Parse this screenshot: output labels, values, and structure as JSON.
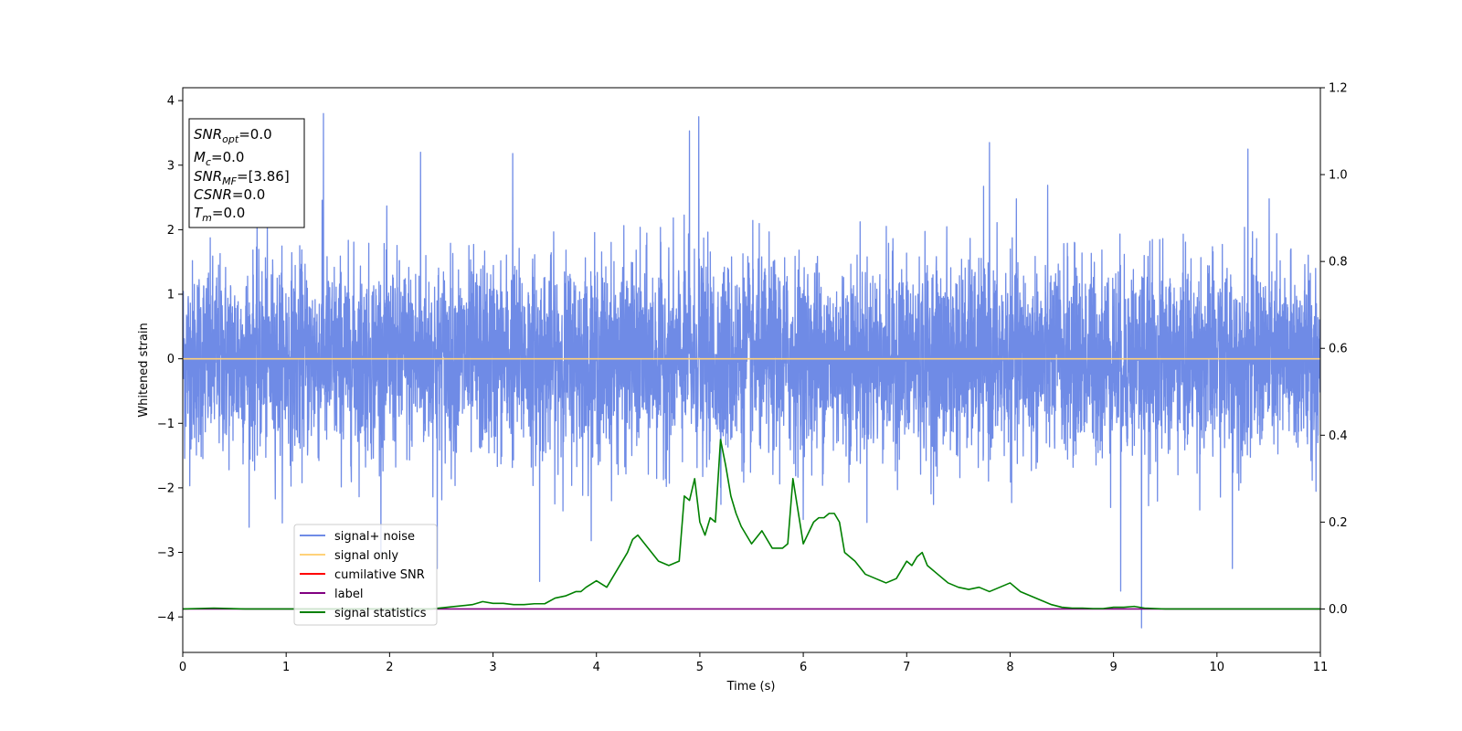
{
  "chart_data": {
    "type": "line",
    "xlabel": "Time (s)",
    "ylabel": "Whitened strain",
    "xlim": [
      0,
      11
    ],
    "ylim": [
      -4.55,
      4.2
    ],
    "y2lim": [
      -0.1,
      1.2
    ],
    "x_ticks": [
      "0",
      "1",
      "2",
      "3",
      "4",
      "5",
      "6",
      "7",
      "8",
      "9",
      "10",
      "11"
    ],
    "y_ticks": [
      "−4",
      "−3",
      "−2",
      "−1",
      "0",
      "1",
      "2",
      "3",
      "4"
    ],
    "y2_ticks": [
      "0.0",
      "0.2",
      "0.4",
      "0.6",
      "0.8",
      "1.0",
      "1.2"
    ],
    "grid": false,
    "legend_position": "lower-left",
    "legend": [
      {
        "label": "signal+ noise",
        "color": "#6f8be6"
      },
      {
        "label": "signal only",
        "color": "#ffd27a"
      },
      {
        "label": "cumilative SNR",
        "color": "#ff0000"
      },
      {
        "label": "label",
        "color": "#800080"
      },
      {
        "label": "signal statistics",
        "color": "#008000"
      }
    ],
    "annotation_box": {
      "snr_opt": {
        "name": "SNR",
        "sub": "opt",
        "value": "=0.0"
      },
      "mc": {
        "name": "M",
        "sub": "c",
        "value": "=0.0"
      },
      "snr_mf": {
        "name": "SNR",
        "sub": "MF",
        "value": "=[3.86]"
      },
      "csnr": {
        "name": "CSNR",
        "sub": "",
        "value": "=0.0"
      },
      "tm": {
        "name": "T",
        "sub": "m",
        "value": "=0.0"
      }
    },
    "series": [
      {
        "name": "signal+ noise",
        "axis": "left",
        "color": "#6f8be6",
        "noise_std": 0.75,
        "peaks": [
          [
            1.36,
            3.8
          ],
          [
            4.99,
            3.75
          ],
          [
            4.9,
            3.53
          ],
          [
            2.3,
            3.2
          ],
          [
            7.8,
            3.35
          ],
          [
            10.3,
            3.25
          ],
          [
            3.19,
            3.18
          ],
          [
            9.27,
            -4.17
          ],
          [
            9.07,
            -3.6
          ],
          [
            2.46,
            -3.25
          ],
          [
            3.45,
            -3.45
          ],
          [
            10.15,
            -3.25
          ]
        ]
      },
      {
        "name": "signal only",
        "axis": "left",
        "color": "#ffd27a",
        "x": [
          0,
          11
        ],
        "y": [
          0,
          0
        ]
      },
      {
        "name": "label",
        "axis": "right",
        "color": "#800080",
        "x": [
          0,
          11
        ],
        "y": [
          0,
          0
        ]
      },
      {
        "name": "signal statistics",
        "axis": "right",
        "color": "#008000",
        "x": [
          0.0,
          0.3,
          0.6,
          1.0,
          1.5,
          2.0,
          2.4,
          2.6,
          2.8,
          2.9,
          3.0,
          3.1,
          3.2,
          3.3,
          3.4,
          3.5,
          3.6,
          3.7,
          3.8,
          3.85,
          3.9,
          4.0,
          4.1,
          4.15,
          4.2,
          4.25,
          4.3,
          4.35,
          4.4,
          4.5,
          4.6,
          4.7,
          4.8,
          4.85,
          4.9,
          4.95,
          5.0,
          5.05,
          5.1,
          5.15,
          5.2,
          5.25,
          5.3,
          5.35,
          5.4,
          5.5,
          5.6,
          5.7,
          5.8,
          5.85,
          5.9,
          6.0,
          6.1,
          6.15,
          6.2,
          6.25,
          6.3,
          6.35,
          6.4,
          6.5,
          6.6,
          6.7,
          6.8,
          6.9,
          7.0,
          7.05,
          7.1,
          7.15,
          7.2,
          7.3,
          7.4,
          7.5,
          7.6,
          7.7,
          7.8,
          7.9,
          8.0,
          8.1,
          8.2,
          8.3,
          8.4,
          8.5,
          8.6,
          8.7,
          8.8,
          8.9,
          9.0,
          9.1,
          9.2,
          9.3,
          9.5,
          10.0,
          10.5,
          11.0
        ],
        "y": [
          0.0,
          0.002,
          0.0,
          0.0,
          0.0,
          0.0,
          0.0,
          0.005,
          0.01,
          0.017,
          0.013,
          0.013,
          0.01,
          0.01,
          0.012,
          0.012,
          0.025,
          0.03,
          0.04,
          0.04,
          0.05,
          0.065,
          0.05,
          0.07,
          0.09,
          0.11,
          0.13,
          0.16,
          0.17,
          0.14,
          0.11,
          0.1,
          0.11,
          0.26,
          0.25,
          0.3,
          0.2,
          0.17,
          0.21,
          0.2,
          0.39,
          0.33,
          0.26,
          0.22,
          0.19,
          0.15,
          0.18,
          0.14,
          0.14,
          0.15,
          0.3,
          0.15,
          0.2,
          0.21,
          0.21,
          0.22,
          0.22,
          0.2,
          0.13,
          0.11,
          0.08,
          0.07,
          0.06,
          0.07,
          0.11,
          0.1,
          0.12,
          0.13,
          0.1,
          0.08,
          0.06,
          0.05,
          0.045,
          0.05,
          0.04,
          0.05,
          0.06,
          0.04,
          0.03,
          0.02,
          0.01,
          0.004,
          0.002,
          0.002,
          0.001,
          0.001,
          0.004,
          0.004,
          0.006,
          0.002,
          0.0,
          0.0,
          0.0,
          0.0
        ]
      }
    ]
  }
}
